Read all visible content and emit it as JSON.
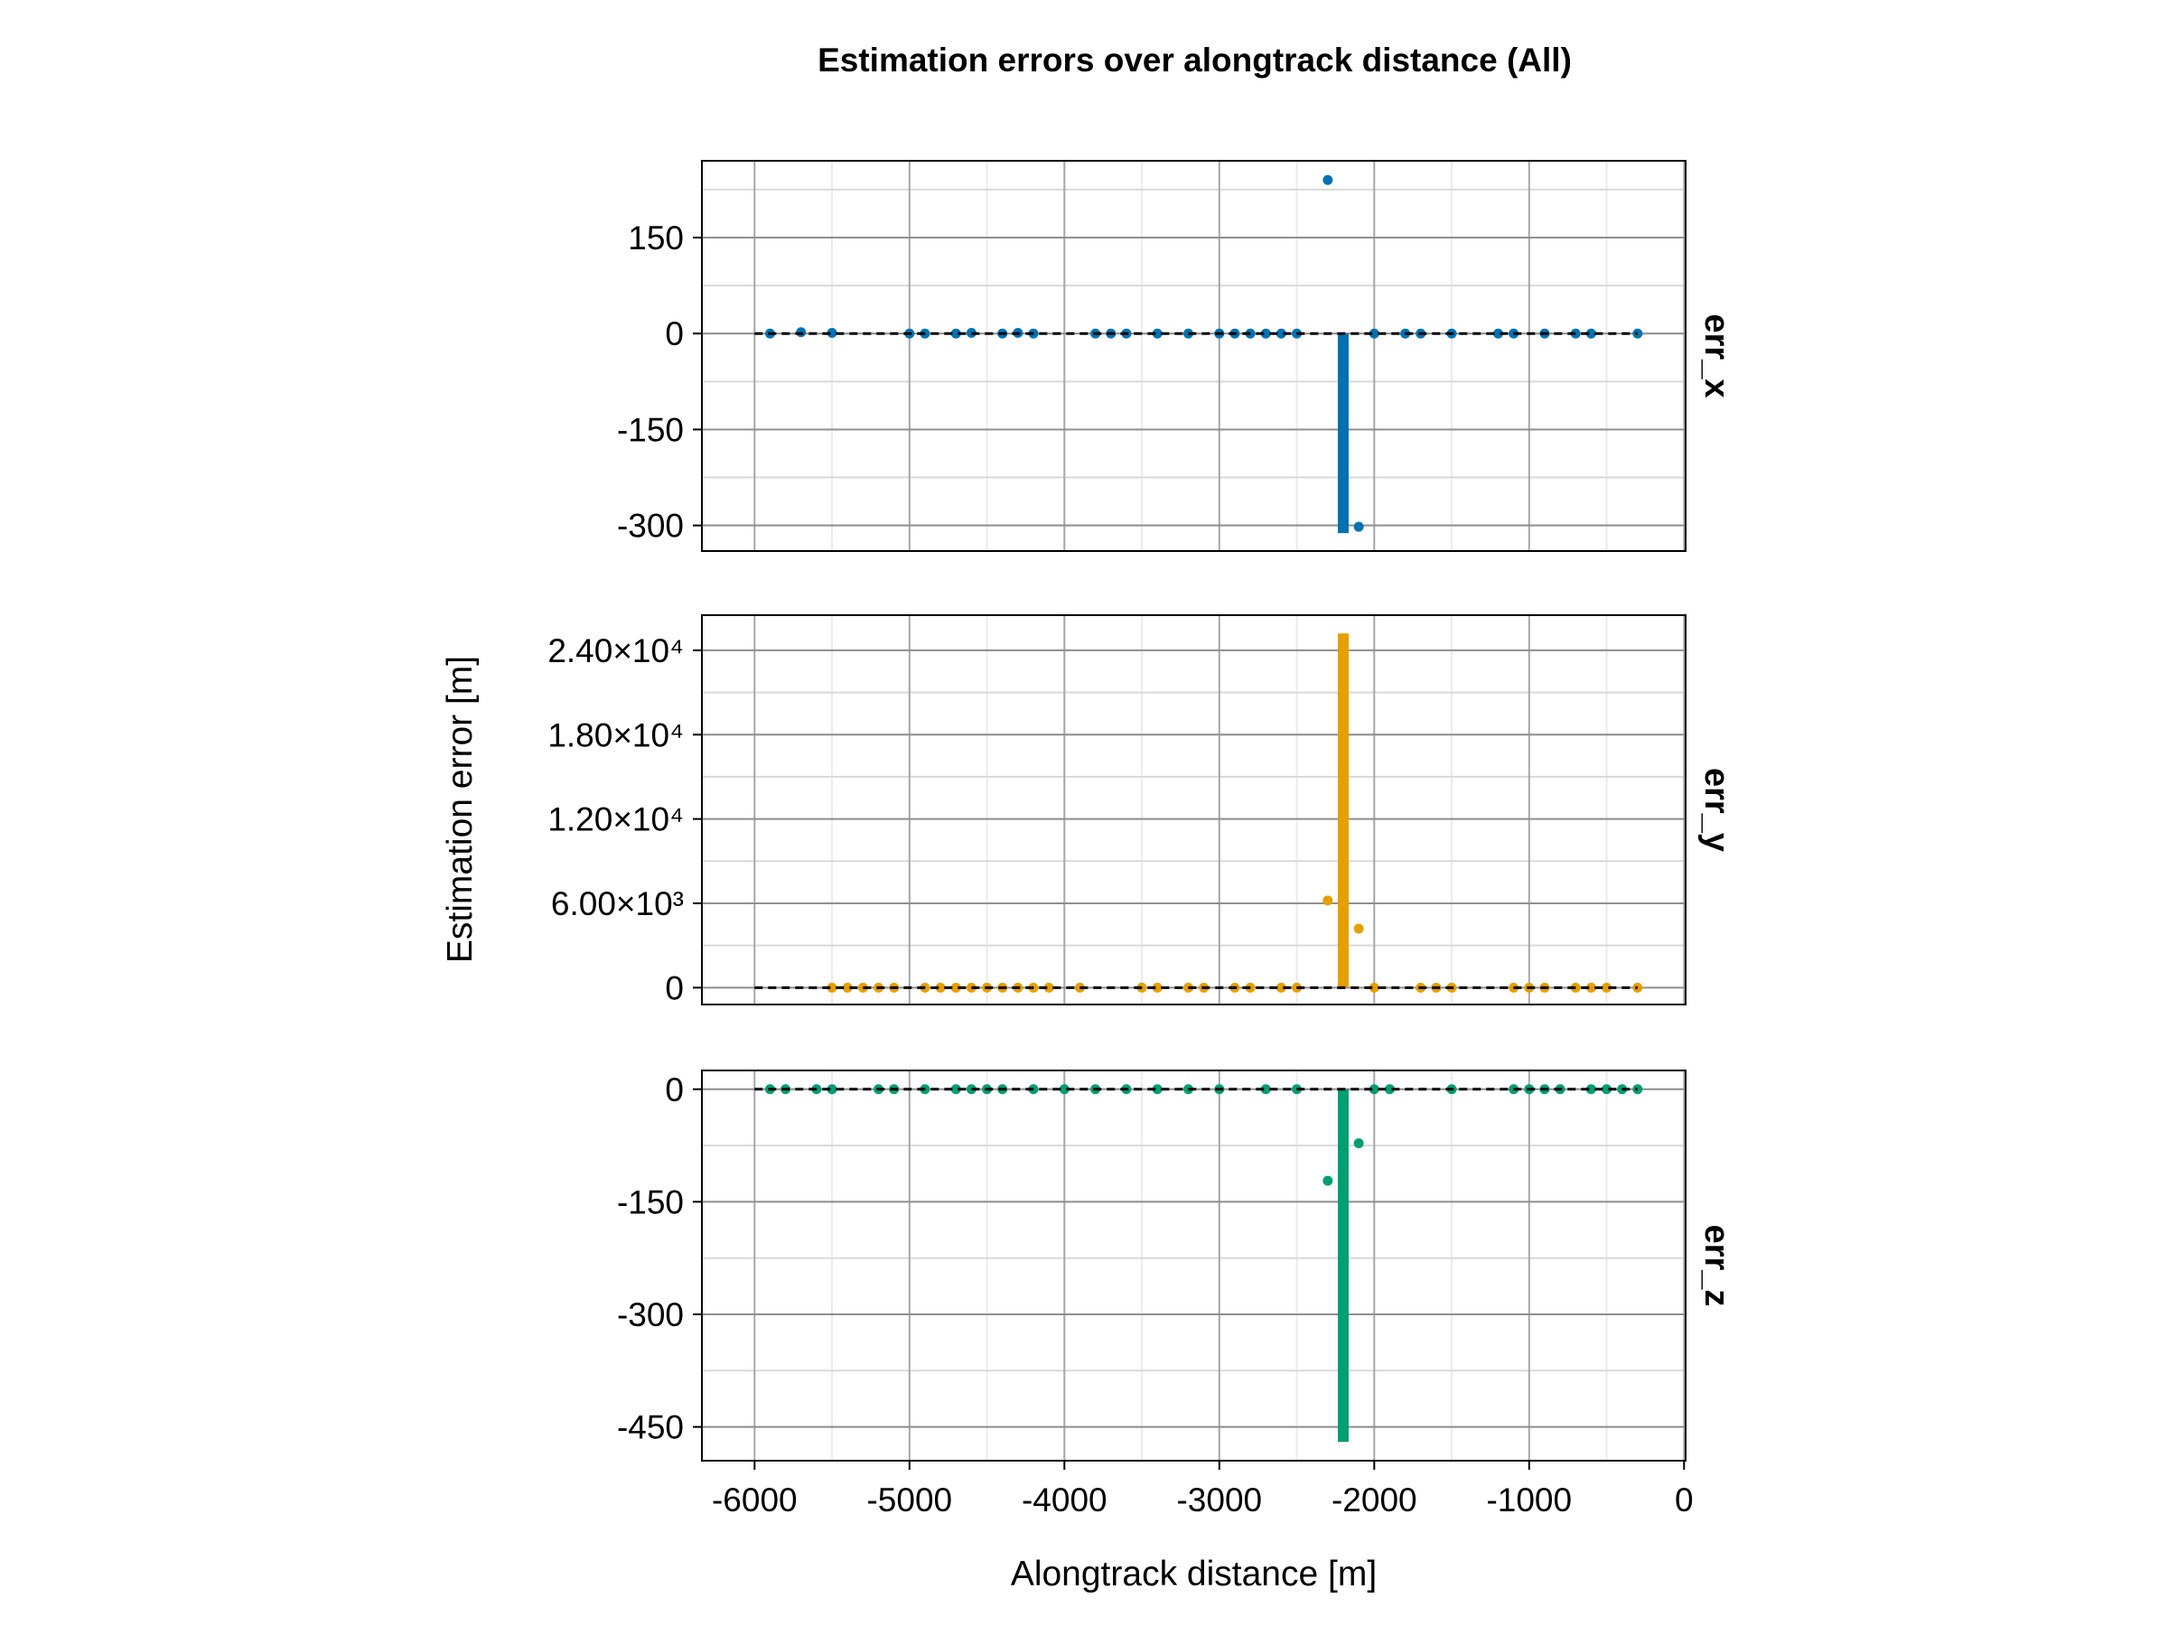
{
  "chart_data": {
    "type": "scatter",
    "title": "Estimation errors over alongtrack distance (All)",
    "xlabel": "Alongtrack distance [m]",
    "ylabel": "Estimation error [m]",
    "xlim": [
      -6340,
      10
    ],
    "xticks": [
      -6000,
      -5000,
      -4000,
      -3000,
      -2000,
      -1000,
      0
    ],
    "xtick_labels": [
      "-6000",
      "-5000",
      "-4000",
      "-3000",
      "-2000",
      "-1000",
      "0"
    ],
    "grid": true,
    "reference_line": {
      "y": 0,
      "x_range": [
        -6000,
        -300
      ],
      "style": "dashed",
      "color": "#000000"
    },
    "panels": [
      {
        "name": "err_x",
        "color": "#0072b2",
        "ylim": [
          -340,
          270
        ],
        "yticks": [
          -300,
          -150,
          0,
          150
        ],
        "ytick_labels": [
          "-300",
          "-150",
          "0",
          "150"
        ],
        "bar": {
          "x": -2200,
          "y_from": 0,
          "y_to": -312
        },
        "points": [
          {
            "x": -5900,
            "y": 0
          },
          {
            "x": -5700,
            "y": 2
          },
          {
            "x": -5500,
            "y": 1
          },
          {
            "x": -5000,
            "y": 0
          },
          {
            "x": -4900,
            "y": 0
          },
          {
            "x": -4700,
            "y": 0
          },
          {
            "x": -4600,
            "y": 1
          },
          {
            "x": -4400,
            "y": 0
          },
          {
            "x": -4300,
            "y": 1
          },
          {
            "x": -4200,
            "y": 0
          },
          {
            "x": -3800,
            "y": 0
          },
          {
            "x": -3700,
            "y": 0
          },
          {
            "x": -3600,
            "y": 0
          },
          {
            "x": -3400,
            "y": 0
          },
          {
            "x": -3200,
            "y": 0
          },
          {
            "x": -3000,
            "y": 0
          },
          {
            "x": -2900,
            "y": 0
          },
          {
            "x": -2800,
            "y": 0
          },
          {
            "x": -2700,
            "y": 0
          },
          {
            "x": -2600,
            "y": 0
          },
          {
            "x": -2500,
            "y": 0
          },
          {
            "x": -2300,
            "y": 240
          },
          {
            "x": -2100,
            "y": -302
          },
          {
            "x": -2000,
            "y": 0
          },
          {
            "x": -1800,
            "y": 0
          },
          {
            "x": -1700,
            "y": 0
          },
          {
            "x": -1500,
            "y": 0
          },
          {
            "x": -1200,
            "y": 0
          },
          {
            "x": -1100,
            "y": 0
          },
          {
            "x": -900,
            "y": 0
          },
          {
            "x": -700,
            "y": 0
          },
          {
            "x": -600,
            "y": 0
          },
          {
            "x": -300,
            "y": 0
          }
        ]
      },
      {
        "name": "err_y",
        "color": "#e69f00",
        "ylim": [
          -1200,
          26500
        ],
        "yticks": [
          0,
          6000,
          12000,
          18000,
          24000
        ],
        "ytick_labels": [
          "0",
          "6.00×10³",
          "1.20×10⁴",
          "1.80×10⁴",
          "2.40×10⁴"
        ],
        "bar": {
          "x": -2200,
          "y_from": 0,
          "y_to": 25200
        },
        "points": [
          {
            "x": -5500,
            "y": 0
          },
          {
            "x": -5400,
            "y": 0
          },
          {
            "x": -5300,
            "y": 0
          },
          {
            "x": -5200,
            "y": 0
          },
          {
            "x": -5100,
            "y": 0
          },
          {
            "x": -4900,
            "y": 0
          },
          {
            "x": -4800,
            "y": 0
          },
          {
            "x": -4700,
            "y": 0
          },
          {
            "x": -4600,
            "y": 0
          },
          {
            "x": -4500,
            "y": 0
          },
          {
            "x": -4400,
            "y": 0
          },
          {
            "x": -4300,
            "y": 0
          },
          {
            "x": -4200,
            "y": 0
          },
          {
            "x": -4100,
            "y": 0
          },
          {
            "x": -3900,
            "y": 0
          },
          {
            "x": -3500,
            "y": 0
          },
          {
            "x": -3400,
            "y": 0
          },
          {
            "x": -3200,
            "y": 0
          },
          {
            "x": -3100,
            "y": 0
          },
          {
            "x": -2900,
            "y": 0
          },
          {
            "x": -2800,
            "y": 0
          },
          {
            "x": -2600,
            "y": 0
          },
          {
            "x": -2500,
            "y": 0
          },
          {
            "x": -2300,
            "y": 6200
          },
          {
            "x": -2100,
            "y": 4200
          },
          {
            "x": -2000,
            "y": 0
          },
          {
            "x": -1700,
            "y": 0
          },
          {
            "x": -1600,
            "y": 0
          },
          {
            "x": -1500,
            "y": 0
          },
          {
            "x": -1100,
            "y": 0
          },
          {
            "x": -1000,
            "y": 0
          },
          {
            "x": -900,
            "y": 0
          },
          {
            "x": -700,
            "y": 0
          },
          {
            "x": -600,
            "y": 0
          },
          {
            "x": -500,
            "y": 0
          },
          {
            "x": -300,
            "y": 0
          }
        ]
      },
      {
        "name": "err_z",
        "color": "#009e73",
        "ylim": [
          -495,
          25
        ],
        "yticks": [
          -450,
          -300,
          -150,
          0
        ],
        "ytick_labels": [
          "-450",
          "-300",
          "-150",
          "0"
        ],
        "bar": {
          "x": -2200,
          "y_from": 0,
          "y_to": -470
        },
        "points": [
          {
            "x": -5900,
            "y": 0
          },
          {
            "x": -5800,
            "y": 0
          },
          {
            "x": -5600,
            "y": 0
          },
          {
            "x": -5500,
            "y": 0
          },
          {
            "x": -5200,
            "y": 0
          },
          {
            "x": -5100,
            "y": 0
          },
          {
            "x": -4900,
            "y": 0
          },
          {
            "x": -4700,
            "y": 0
          },
          {
            "x": -4600,
            "y": 0
          },
          {
            "x": -4500,
            "y": 0
          },
          {
            "x": -4400,
            "y": 0
          },
          {
            "x": -4200,
            "y": 0
          },
          {
            "x": -4000,
            "y": 0
          },
          {
            "x": -3800,
            "y": 0
          },
          {
            "x": -3600,
            "y": 0
          },
          {
            "x": -3400,
            "y": 0
          },
          {
            "x": -3200,
            "y": 0
          },
          {
            "x": -3000,
            "y": 0
          },
          {
            "x": -2700,
            "y": 0
          },
          {
            "x": -2500,
            "y": 0
          },
          {
            "x": -2300,
            "y": -122
          },
          {
            "x": -2100,
            "y": -72
          },
          {
            "x": -2000,
            "y": 0
          },
          {
            "x": -1900,
            "y": 0
          },
          {
            "x": -1500,
            "y": 0
          },
          {
            "x": -1100,
            "y": 0
          },
          {
            "x": -1000,
            "y": 0
          },
          {
            "x": -900,
            "y": 0
          },
          {
            "x": -800,
            "y": 0
          },
          {
            "x": -600,
            "y": 0
          },
          {
            "x": -500,
            "y": 0
          },
          {
            "x": -400,
            "y": 0
          },
          {
            "x": -300,
            "y": 0
          }
        ]
      }
    ]
  }
}
